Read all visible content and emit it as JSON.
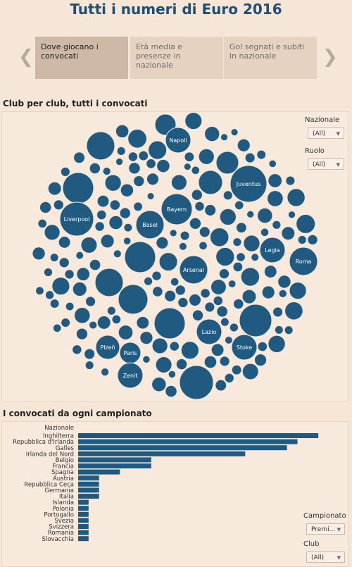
{
  "page": {
    "title": "Tutti i numeri di Euro 2016"
  },
  "story": {
    "points": [
      {
        "label": "Dove giocano i convocati",
        "active": true
      },
      {
        "label": "Età media e presenze in nazionale",
        "active": false
      },
      {
        "label": "Gol segnati e subiti in nazionale",
        "active": false
      }
    ],
    "prev_icon": "chevron-left-icon",
    "next_icon": "chevron-right-icon"
  },
  "bubble_section": {
    "title": "Club per club, tutti i convocati",
    "filters": [
      {
        "label": "Nazionale",
        "value": "(All)"
      },
      {
        "label": "Ruolo",
        "value": "(All)"
      }
    ]
  },
  "bar_section": {
    "title": "I convocati da ogni campionato",
    "filters": [
      {
        "label": "Campionato",
        "value": "Premi..."
      },
      {
        "label": "Club",
        "value": "(All)"
      }
    ]
  },
  "colors": {
    "bar": "#215a80",
    "bubble": "#215a80",
    "title": "#1f4e79",
    "background": "#f5e6d8"
  },
  "chart_data": [
    {
      "type": "bubble",
      "labeled_bubbles": [
        "Napoli",
        "Juventus",
        "Bayern",
        "Liverpool",
        "Basel",
        "Legia",
        "Roma",
        "Arsenal",
        "Lazio",
        "Stoke",
        "Plzeň",
        "Paris",
        "Zenit"
      ]
    },
    {
      "type": "bar",
      "orientation": "horizontal",
      "header": "Nazionale",
      "categories": [
        "Inghilterra",
        "Repubblica d'Irlanda",
        "Galles",
        "Irlanda del Nord",
        "Belgio",
        "Francia",
        "Spagna",
        "Austria",
        "Repubblica Ceca",
        "Germania",
        "Italia",
        "Islanda",
        "Polonia",
        "Portogallo",
        "Svezia",
        "Svizzera",
        "Romania",
        "Slovacchia"
      ],
      "values": [
        23,
        21,
        20,
        16,
        7,
        7,
        4,
        2,
        2,
        2,
        2,
        1,
        1,
        1,
        1,
        1,
        1,
        1
      ],
      "xlim": [
        0,
        24
      ],
      "grid": false
    }
  ]
}
